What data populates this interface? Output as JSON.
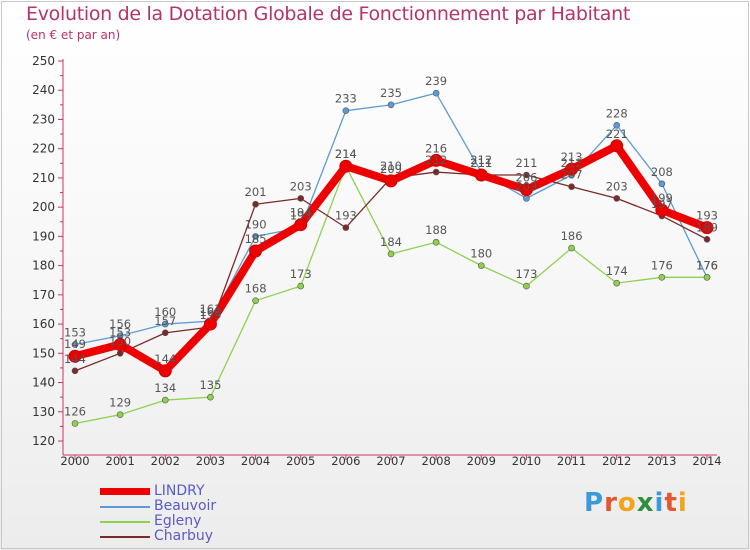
{
  "title": "Evolution de la Dotation Globale de Fonctionnement par Habitant",
  "subtitle": "(en € et par an)",
  "brand": {
    "text": "Proxiti",
    "letter_colors": [
      "#3a9ad9",
      "#e4572e",
      "#f2a51a",
      "#2f8f3f",
      "#3a9ad9",
      "#e4572e",
      "#f2a51a"
    ]
  },
  "chart_data": {
    "type": "line",
    "title": "Evolution de la Dotation Globale de Fonctionnement par Habitant",
    "subtitle": "(en € et par an)",
    "xlabel": "",
    "ylabel": "",
    "x": [
      "2000",
      "2001",
      "2002",
      "2003",
      "2004",
      "2005",
      "2006",
      "2007",
      "2008",
      "2009",
      "2010",
      "2011",
      "2012",
      "2013",
      "2014"
    ],
    "ylim": [
      120,
      250
    ],
    "yticks": [
      120,
      130,
      140,
      150,
      160,
      170,
      180,
      190,
      200,
      210,
      220,
      230,
      240,
      250
    ],
    "grid": false,
    "legend": "bottom-left",
    "series": [
      {
        "name": "LINDRY",
        "color": "#ee0000",
        "values": [
          149,
          153,
          144,
          160,
          185,
          194,
          214,
          209,
          216,
          211,
          206,
          213,
          221,
          199,
          193
        ]
      },
      {
        "name": "Beauvoir",
        "color": "#5b9bd5",
        "values": [
          153,
          156,
          160,
          161,
          190,
          193,
          233,
          235,
          239,
          212,
          203,
          211,
          228,
          208,
          176
        ]
      },
      {
        "name": "Egleny",
        "color": "#8fd14f",
        "values": [
          126,
          129,
          134,
          135,
          168,
          173,
          214,
          184,
          188,
          180,
          173,
          186,
          174,
          176,
          176
        ]
      },
      {
        "name": "Charbuy",
        "color": "#7b2a2a",
        "values": [
          144,
          150,
          157,
          159,
          201,
          203,
          193,
          210,
          212,
          211,
          211,
          207,
          203,
          197,
          189
        ]
      }
    ]
  }
}
